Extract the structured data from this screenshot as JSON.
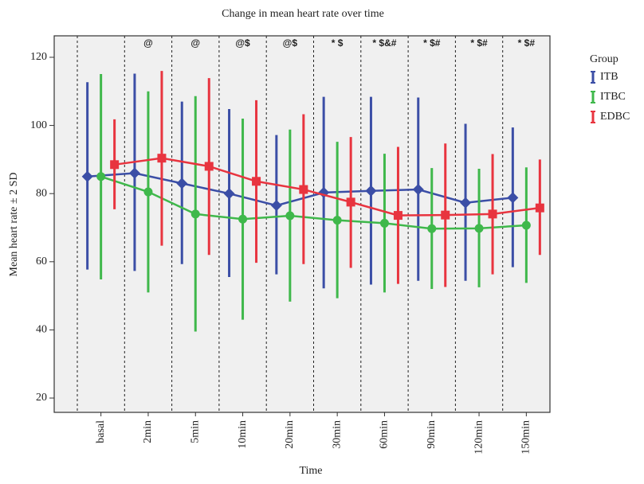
{
  "chart_data": {
    "type": "errorbar-line",
    "title": "Change in mean heart rate over time",
    "x_label": "Time",
    "y_label": "Mean heart rate ± 2 SD",
    "legend_title": "Group",
    "categories": [
      "basal",
      "2min",
      "5min",
      "10min",
      "20min",
      "30min",
      "60min",
      "90min",
      "120min",
      "150min"
    ],
    "annotations": [
      null,
      "@",
      "@",
      "@$",
      "@$",
      "* $",
      "* $&#",
      "* $#",
      "* $#",
      "* $#"
    ],
    "series": [
      {
        "name": "ITB",
        "color": "#3b4ea6",
        "marker": "diamond",
        "values": [
          85,
          86,
          83,
          80,
          76.5,
          80.3,
          80.8,
          81.2,
          77.3,
          78.8
        ],
        "lower": [
          57.7,
          57.3,
          59.3,
          55.5,
          56.3,
          52.2,
          53.3,
          54.4,
          54.4,
          58.4
        ],
        "upper": [
          112.7,
          115.2,
          107,
          104.8,
          97.2,
          108.4,
          108.4,
          108.2,
          100.5,
          99.4
        ]
      },
      {
        "name": "ITBC",
        "color": "#3fb84b",
        "marker": "circle",
        "values": [
          85,
          80.5,
          74,
          72.5,
          73.5,
          72.2,
          71.3,
          69.7,
          69.8,
          70.7
        ],
        "lower": [
          54.8,
          51,
          39.5,
          43,
          48.3,
          49.3,
          51,
          52,
          52.5,
          53.8
        ],
        "upper": [
          115.1,
          110,
          108.6,
          102,
          98.8,
          95.2,
          91.7,
          87.5,
          87.3,
          87.7
        ]
      },
      {
        "name": "EDBC",
        "color": "#e8343f",
        "marker": "square",
        "values": [
          88.5,
          90.4,
          88,
          83.6,
          81.2,
          77.5,
          73.6,
          73.7,
          74,
          75.8
        ],
        "lower": [
          75.4,
          64.7,
          62,
          59.7,
          59.3,
          58.2,
          53.5,
          52.6,
          56.3,
          62
        ],
        "upper": [
          101.8,
          116,
          113.9,
          107.4,
          103.3,
          96.6,
          93.7,
          94.7,
          91.6,
          90
        ]
      }
    ],
    "ylim": [
      15.8,
      126.3
    ],
    "yticks": [
      20,
      40,
      60,
      80,
      100,
      120
    ],
    "category_dividers": true
  }
}
